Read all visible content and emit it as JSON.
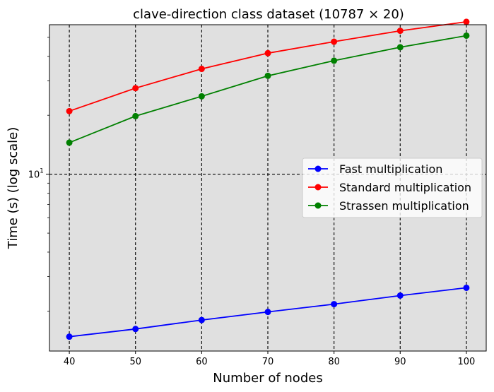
{
  "chart_data": {
    "type": "line",
    "title": "clave-direction class dataset (10787 × 20)",
    "xlabel": "Number of nodes",
    "ylabel": "Time (s) (log scale)",
    "y_scale": "log",
    "x": [
      40,
      50,
      60,
      70,
      80,
      90,
      100
    ],
    "xlim": [
      37,
      103
    ],
    "ylim": [
      1.25,
      58
    ],
    "x_ticks": [
      "40",
      "50",
      "60",
      "70",
      "80",
      "90",
      "100"
    ],
    "y_tick_label": {
      "base": "10",
      "exp": "1",
      "value": 10
    },
    "grid": "dashed",
    "legend_position": "center-right",
    "background_color": "#e0e0e0",
    "series": [
      {
        "name": "Fast multiplication",
        "color": "#0000ff",
        "values": [
          1.48,
          1.62,
          1.8,
          1.98,
          2.17,
          2.4,
          2.63
        ]
      },
      {
        "name": "Standard multiplication",
        "color": "#ff0000",
        "values": [
          21.0,
          27.5,
          34.5,
          41.5,
          47.5,
          54.0,
          60.0
        ]
      },
      {
        "name": "Strassen multiplication",
        "color": "#008000",
        "values": [
          14.5,
          19.8,
          25.0,
          31.8,
          38.0,
          44.5,
          51.0
        ]
      }
    ]
  }
}
